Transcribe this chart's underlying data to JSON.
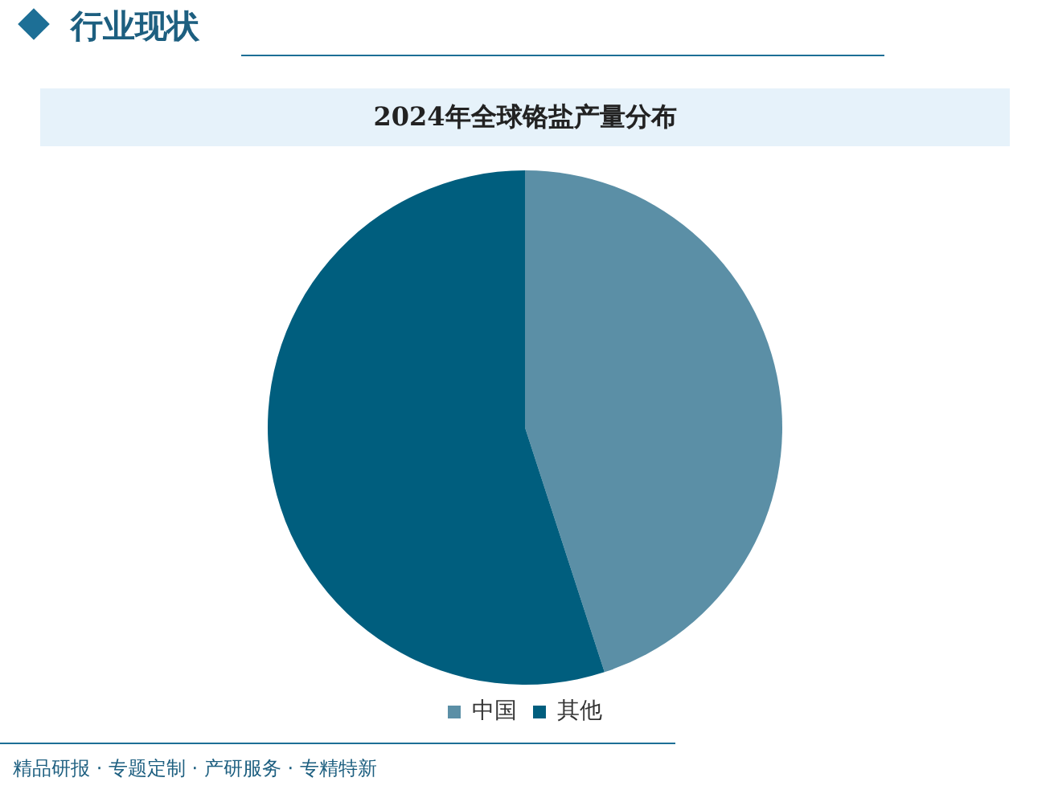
{
  "chart_data": {
    "type": "pie",
    "title": "2024年全球铬盐产量分布",
    "categories": [
      "中国",
      "其他"
    ],
    "values": [
      45,
      55
    ],
    "colors": [
      "#5b8fa6",
      "#005e7e"
    ],
    "legend": "bottom",
    "annotations": [
      "行业现状",
      "精品研报 · 专题定制 · 产研服务 · 专精特新"
    ]
  }
}
